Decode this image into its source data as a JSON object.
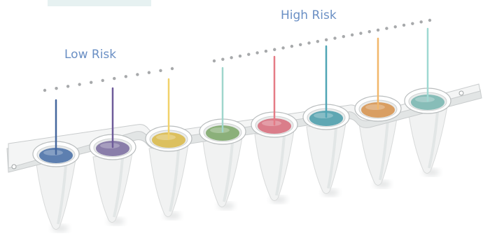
{
  "labels": {
    "low_risk": "Low Risk",
    "high_risk": "High Risk"
  },
  "colors": {
    "label_text": "#6a8fc4",
    "dots": "#a7a9ab",
    "strip_fill": "#f4f5f5",
    "strip_edge": "#c9cccd",
    "tube_fill": "#f1f2f2",
    "tube_shadow": "#d8dada",
    "corner_band": "#e6f1f1"
  },
  "wells": [
    {
      "name": "well-1",
      "group": "low",
      "color": "#5d7fb0",
      "stem": "#45679e"
    },
    {
      "name": "well-2",
      "group": "low",
      "color": "#8a7eaa",
      "stem": "#6e5b9a"
    },
    {
      "name": "well-3",
      "group": "low",
      "color": "#dcc05e",
      "stem": "#f1d26a"
    },
    {
      "name": "well-4",
      "group": "high",
      "color": "#8bb07a",
      "stem": "#9fd6cc"
    },
    {
      "name": "well-5",
      "group": "high",
      "color": "#da7d8a",
      "stem": "#e57b86"
    },
    {
      "name": "well-6",
      "group": "high",
      "color": "#5fa7b3",
      "stem": "#4fa5b5"
    },
    {
      "name": "well-7",
      "group": "high",
      "color": "#d99e62",
      "stem": "#f2b76a"
    },
    {
      "name": "well-8",
      "group": "high",
      "color": "#87bdb8",
      "stem": "#9fd9d2"
    }
  ]
}
